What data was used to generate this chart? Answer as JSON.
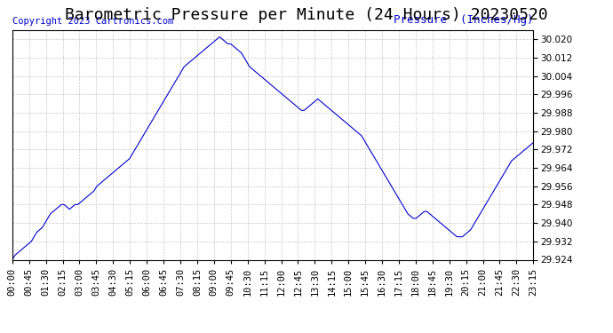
{
  "title": "Barometric Pressure per Minute (24 Hours) 20230520",
  "ylabel": "Pressure  (Inches/Hg)",
  "copyright_text": "Copyright 2023 Cartronics.com",
  "line_color": "#0000cc",
  "background_color": "#ffffff",
  "grid_color": "#bbbbbb",
  "ylabel_color": "#0000cc",
  "copyright_color": "#0000cc",
  "ylim": [
    29.924,
    30.024
  ],
  "yticks": [
    29.924,
    29.932,
    29.94,
    29.948,
    29.956,
    29.964,
    29.972,
    29.98,
    29.988,
    29.996,
    30.004,
    30.012,
    30.02
  ],
  "xtick_labels": [
    "00:00",
    "00:45",
    "01:30",
    "02:15",
    "03:00",
    "03:45",
    "04:30",
    "05:15",
    "06:00",
    "06:45",
    "07:30",
    "08:15",
    "09:00",
    "09:45",
    "10:30",
    "11:15",
    "12:00",
    "12:45",
    "13:30",
    "14:15",
    "15:00",
    "15:45",
    "16:30",
    "17:15",
    "18:00",
    "18:45",
    "19:30",
    "20:15",
    "21:00",
    "21:45",
    "22:30",
    "23:15"
  ],
  "pressure_data": [
    29.924,
    29.926,
    29.927,
    29.928,
    29.929,
    29.93,
    29.931,
    29.932,
    29.934,
    29.936,
    29.937,
    29.938,
    29.94,
    29.942,
    29.944,
    29.945,
    29.946,
    29.947,
    29.948,
    29.948,
    29.947,
    29.946,
    29.947,
    29.948,
    29.948,
    29.949,
    29.95,
    29.951,
    29.952,
    29.953,
    29.954,
    29.956,
    29.957,
    29.958,
    29.959,
    29.96,
    29.961,
    29.962,
    29.963,
    29.964,
    29.965,
    29.966,
    29.967,
    29.968,
    29.97,
    29.972,
    29.974,
    29.976,
    29.978,
    29.98,
    29.982,
    29.984,
    29.986,
    29.988,
    29.99,
    29.992,
    29.994,
    29.996,
    29.998,
    30.0,
    30.002,
    30.004,
    30.006,
    30.008,
    30.009,
    30.01,
    30.011,
    30.012,
    30.013,
    30.014,
    30.015,
    30.016,
    30.017,
    30.018,
    30.019,
    30.02,
    30.021,
    30.02,
    30.019,
    30.018,
    30.018,
    30.017,
    30.016,
    30.015,
    30.014,
    30.012,
    30.01,
    30.008,
    30.007,
    30.006,
    30.005,
    30.004,
    30.003,
    30.002,
    30.001,
    30.0,
    29.999,
    29.998,
    29.997,
    29.996,
    29.995,
    29.994,
    29.993,
    29.992,
    29.991,
    29.99,
    29.989,
    29.989,
    29.99,
    29.991,
    29.992,
    29.993,
    29.994,
    29.993,
    29.992,
    29.991,
    29.99,
    29.989,
    29.988,
    29.987,
    29.986,
    29.985,
    29.984,
    29.983,
    29.982,
    29.981,
    29.98,
    29.979,
    29.978,
    29.976,
    29.974,
    29.972,
    29.97,
    29.968,
    29.966,
    29.964,
    29.962,
    29.96,
    29.958,
    29.956,
    29.954,
    29.952,
    29.95,
    29.948,
    29.946,
    29.944,
    29.943,
    29.942,
    29.942,
    29.943,
    29.944,
    29.945,
    29.945,
    29.944,
    29.943,
    29.942,
    29.941,
    29.94,
    29.939,
    29.938,
    29.937,
    29.936,
    29.935,
    29.934,
    29.934,
    29.934,
    29.935,
    29.936,
    29.937,
    29.939,
    29.941,
    29.943,
    29.945,
    29.947,
    29.949,
    29.951,
    29.953,
    29.955,
    29.957,
    29.959,
    29.961,
    29.963,
    29.965,
    29.967,
    29.968,
    29.969,
    29.97,
    29.971,
    29.972,
    29.973,
    29.974,
    29.975
  ],
  "n_points": 192,
  "title_fontsize": 13,
  "tick_fontsize": 7.5,
  "ylabel_fontsize": 9,
  "copyright_fontsize": 7.5
}
